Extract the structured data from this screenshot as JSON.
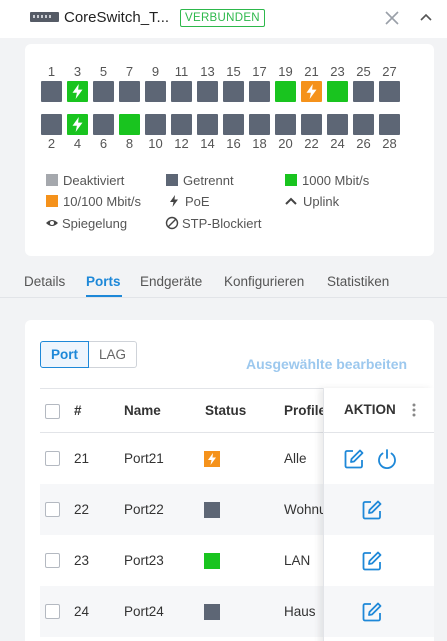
{
  "header": {
    "device_icon": "switch-device-icon",
    "device_name": "CoreSwitch_T...",
    "status_badge": "VERBUNDEN",
    "close_icon": "close-icon",
    "collapse_icon": "collapse-up-icon"
  },
  "ports": {
    "top_labels": [
      "1",
      "3",
      "5",
      "7",
      "9",
      "11",
      "13",
      "15",
      "17",
      "19",
      "21",
      "23",
      "25",
      "27"
    ],
    "bottom_labels": [
      "2",
      "4",
      "6",
      "8",
      "10",
      "12",
      "14",
      "16",
      "18",
      "20",
      "22",
      "24",
      "26",
      "28"
    ],
    "top_states": [
      "disconnected",
      "green-poe",
      "disconnected",
      "disconnected",
      "disconnected",
      "disconnected",
      "disconnected",
      "disconnected",
      "disconnected",
      "green",
      "orange-poe",
      "green",
      "disconnected",
      "disconnected"
    ],
    "bottom_states": [
      "disconnected",
      "green-poe",
      "disconnected",
      "green",
      "disconnected",
      "disconnected",
      "disconnected",
      "disconnected",
      "disconnected",
      "disconnected",
      "disconnected",
      "disconnected",
      "disconnected",
      "disconnected"
    ]
  },
  "legend": {
    "deactivated": "Deaktiviert",
    "disconnected": "Getrennt",
    "gbit": "1000 Mbit/s",
    "mbit": "10/100 Mbit/s",
    "poe": "PoE",
    "uplink": "Uplink",
    "mirroring": "Spiegelung",
    "stp": "STP-Blockiert"
  },
  "colors": {
    "deactivated": "#a5a8ad",
    "disconnected": "#5d6675",
    "gbit": "#19c41f",
    "mbit": "#f5921b",
    "accent": "#1e88d8"
  },
  "tabs": [
    "Details",
    "Ports",
    "Endgeräte",
    "Konfigurieren",
    "Statistiken"
  ],
  "active_tab": "Ports",
  "segment": {
    "port": "Port",
    "lag": "LAG"
  },
  "edit_selected": "Ausgewählte bearbeiten",
  "table": {
    "headers": {
      "num": "#",
      "name": "Name",
      "status": "Status",
      "profile": "Profile",
      "action": "AKTION"
    },
    "rows": [
      {
        "num": "21",
        "name": "Port21",
        "status": "orange-poe",
        "profile": "Alle"
      },
      {
        "num": "22",
        "name": "Port22",
        "status": "disconnected",
        "profile": "Wohnung"
      },
      {
        "num": "23",
        "name": "Port23",
        "status": "green",
        "profile": "LAN"
      },
      {
        "num": "24",
        "name": "Port24",
        "status": "disconnected",
        "profile": "Haus"
      }
    ],
    "row_actions": [
      "edit-icon",
      "power-icon"
    ]
  }
}
